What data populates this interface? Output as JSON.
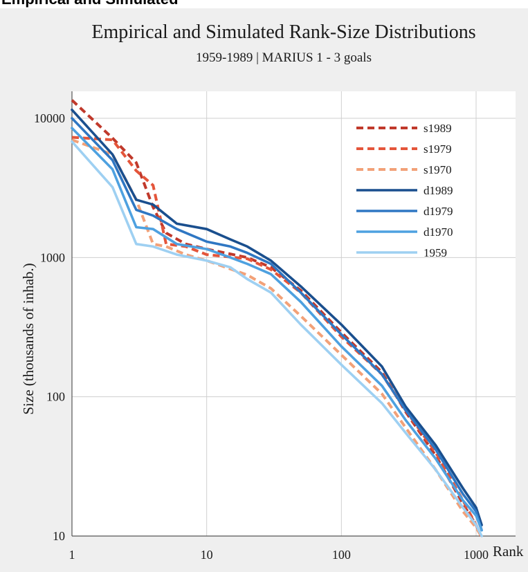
{
  "header_fragment": "Empirical and Simulated",
  "chart_data": {
    "type": "line",
    "title": "Empirical and Simulated Rank-Size Distributions",
    "subtitle": "1959-1989 | MARIUS 1 - 3 goals",
    "xlabel": "Rank",
    "ylabel": "Size (thousands of inhab.)",
    "xscale": "log",
    "yscale": "log",
    "xlim": [
      1,
      1100
    ],
    "ylim": [
      10,
      20000
    ],
    "xticks": [
      1,
      10,
      100,
      1000
    ],
    "xtick_labels": [
      "1",
      "10",
      "100",
      "1000"
    ],
    "yticks": [
      10,
      100,
      1000,
      10000
    ],
    "ytick_labels": [
      "10",
      "100",
      "1000",
      "10000"
    ],
    "grid": true,
    "legend_position": "top-right",
    "series": [
      {
        "name": "s1989",
        "style": "dashed",
        "color": "#c0392b",
        "points": [
          [
            1,
            13500
          ],
          [
            2,
            7200
          ],
          [
            3,
            4800
          ],
          [
            4,
            2300
          ],
          [
            5,
            1500
          ],
          [
            7,
            1250
          ],
          [
            10,
            1150
          ],
          [
            20,
            1000
          ],
          [
            30,
            850
          ],
          [
            50,
            580
          ],
          [
            100,
            290
          ],
          [
            200,
            150
          ],
          [
            300,
            78
          ],
          [
            500,
            38
          ],
          [
            800,
            17
          ],
          [
            1000,
            12
          ],
          [
            1090,
            10
          ]
        ]
      },
      {
        "name": "s1979",
        "style": "dashed",
        "color": "#e4553a",
        "points": [
          [
            1,
            7300
          ],
          [
            2,
            7000
          ],
          [
            3,
            4200
          ],
          [
            4,
            3300
          ],
          [
            5,
            1250
          ],
          [
            7,
            1200
          ],
          [
            10,
            1050
          ],
          [
            20,
            980
          ],
          [
            30,
            820
          ],
          [
            50,
            560
          ],
          [
            100,
            270
          ],
          [
            200,
            145
          ],
          [
            300,
            80
          ],
          [
            500,
            40
          ],
          [
            800,
            18
          ],
          [
            1000,
            12
          ],
          [
            1090,
            10
          ]
        ]
      },
      {
        "name": "s1970",
        "style": "dashed",
        "color": "#f2a178",
        "points": [
          [
            1,
            7000
          ],
          [
            2,
            5500
          ],
          [
            3,
            2600
          ],
          [
            4,
            1250
          ],
          [
            5,
            1200
          ],
          [
            7,
            1050
          ],
          [
            10,
            950
          ],
          [
            20,
            750
          ],
          [
            30,
            600
          ],
          [
            50,
            380
          ],
          [
            100,
            200
          ],
          [
            200,
            105
          ],
          [
            300,
            60
          ],
          [
            500,
            30
          ],
          [
            800,
            15
          ],
          [
            1000,
            11.5
          ],
          [
            1090,
            10
          ]
        ]
      },
      {
        "name": "d1989",
        "style": "solid",
        "color": "#1a4f8e",
        "points": [
          [
            1,
            11500
          ],
          [
            2,
            5500
          ],
          [
            3,
            2600
          ],
          [
            4,
            2400
          ],
          [
            6,
            1750
          ],
          [
            10,
            1600
          ],
          [
            15,
            1350
          ],
          [
            20,
            1200
          ],
          [
            30,
            950
          ],
          [
            50,
            620
          ],
          [
            100,
            330
          ],
          [
            200,
            165
          ],
          [
            300,
            85
          ],
          [
            500,
            45
          ],
          [
            800,
            22
          ],
          [
            1000,
            16
          ],
          [
            1100,
            12
          ]
        ]
      },
      {
        "name": "d1979",
        "style": "solid",
        "color": "#2f77c3",
        "points": [
          [
            1,
            10000
          ],
          [
            2,
            5000
          ],
          [
            3,
            2200
          ],
          [
            4,
            2000
          ],
          [
            6,
            1600
          ],
          [
            10,
            1300
          ],
          [
            15,
            1200
          ],
          [
            20,
            1080
          ],
          [
            30,
            900
          ],
          [
            50,
            560
          ],
          [
            100,
            280
          ],
          [
            200,
            145
          ],
          [
            300,
            80
          ],
          [
            500,
            42
          ],
          [
            800,
            20
          ],
          [
            1000,
            15
          ],
          [
            1100,
            11
          ]
        ]
      },
      {
        "name": "d1970",
        "style": "solid",
        "color": "#4ea1e0",
        "points": [
          [
            1,
            8500
          ],
          [
            2,
            4300
          ],
          [
            3,
            1650
          ],
          [
            4,
            1600
          ],
          [
            6,
            1250
          ],
          [
            10,
            1150
          ],
          [
            15,
            1000
          ],
          [
            20,
            900
          ],
          [
            30,
            760
          ],
          [
            50,
            480
          ],
          [
            100,
            230
          ],
          [
            200,
            120
          ],
          [
            300,
            68
          ],
          [
            500,
            36
          ],
          [
            800,
            18
          ],
          [
            1000,
            14
          ],
          [
            1100,
            11
          ]
        ]
      },
      {
        "name": "1959",
        "style": "solid",
        "color": "#9ed0f2",
        "points": [
          [
            1,
            6800
          ],
          [
            2,
            3200
          ],
          [
            3,
            1250
          ],
          [
            4,
            1200
          ],
          [
            6,
            1050
          ],
          [
            10,
            950
          ],
          [
            15,
            850
          ],
          [
            20,
            700
          ],
          [
            30,
            560
          ],
          [
            50,
            330
          ],
          [
            100,
            170
          ],
          [
            200,
            90
          ],
          [
            300,
            55
          ],
          [
            500,
            30
          ],
          [
            800,
            16
          ],
          [
            1000,
            12
          ],
          [
            1100,
            10
          ]
        ]
      }
    ]
  }
}
